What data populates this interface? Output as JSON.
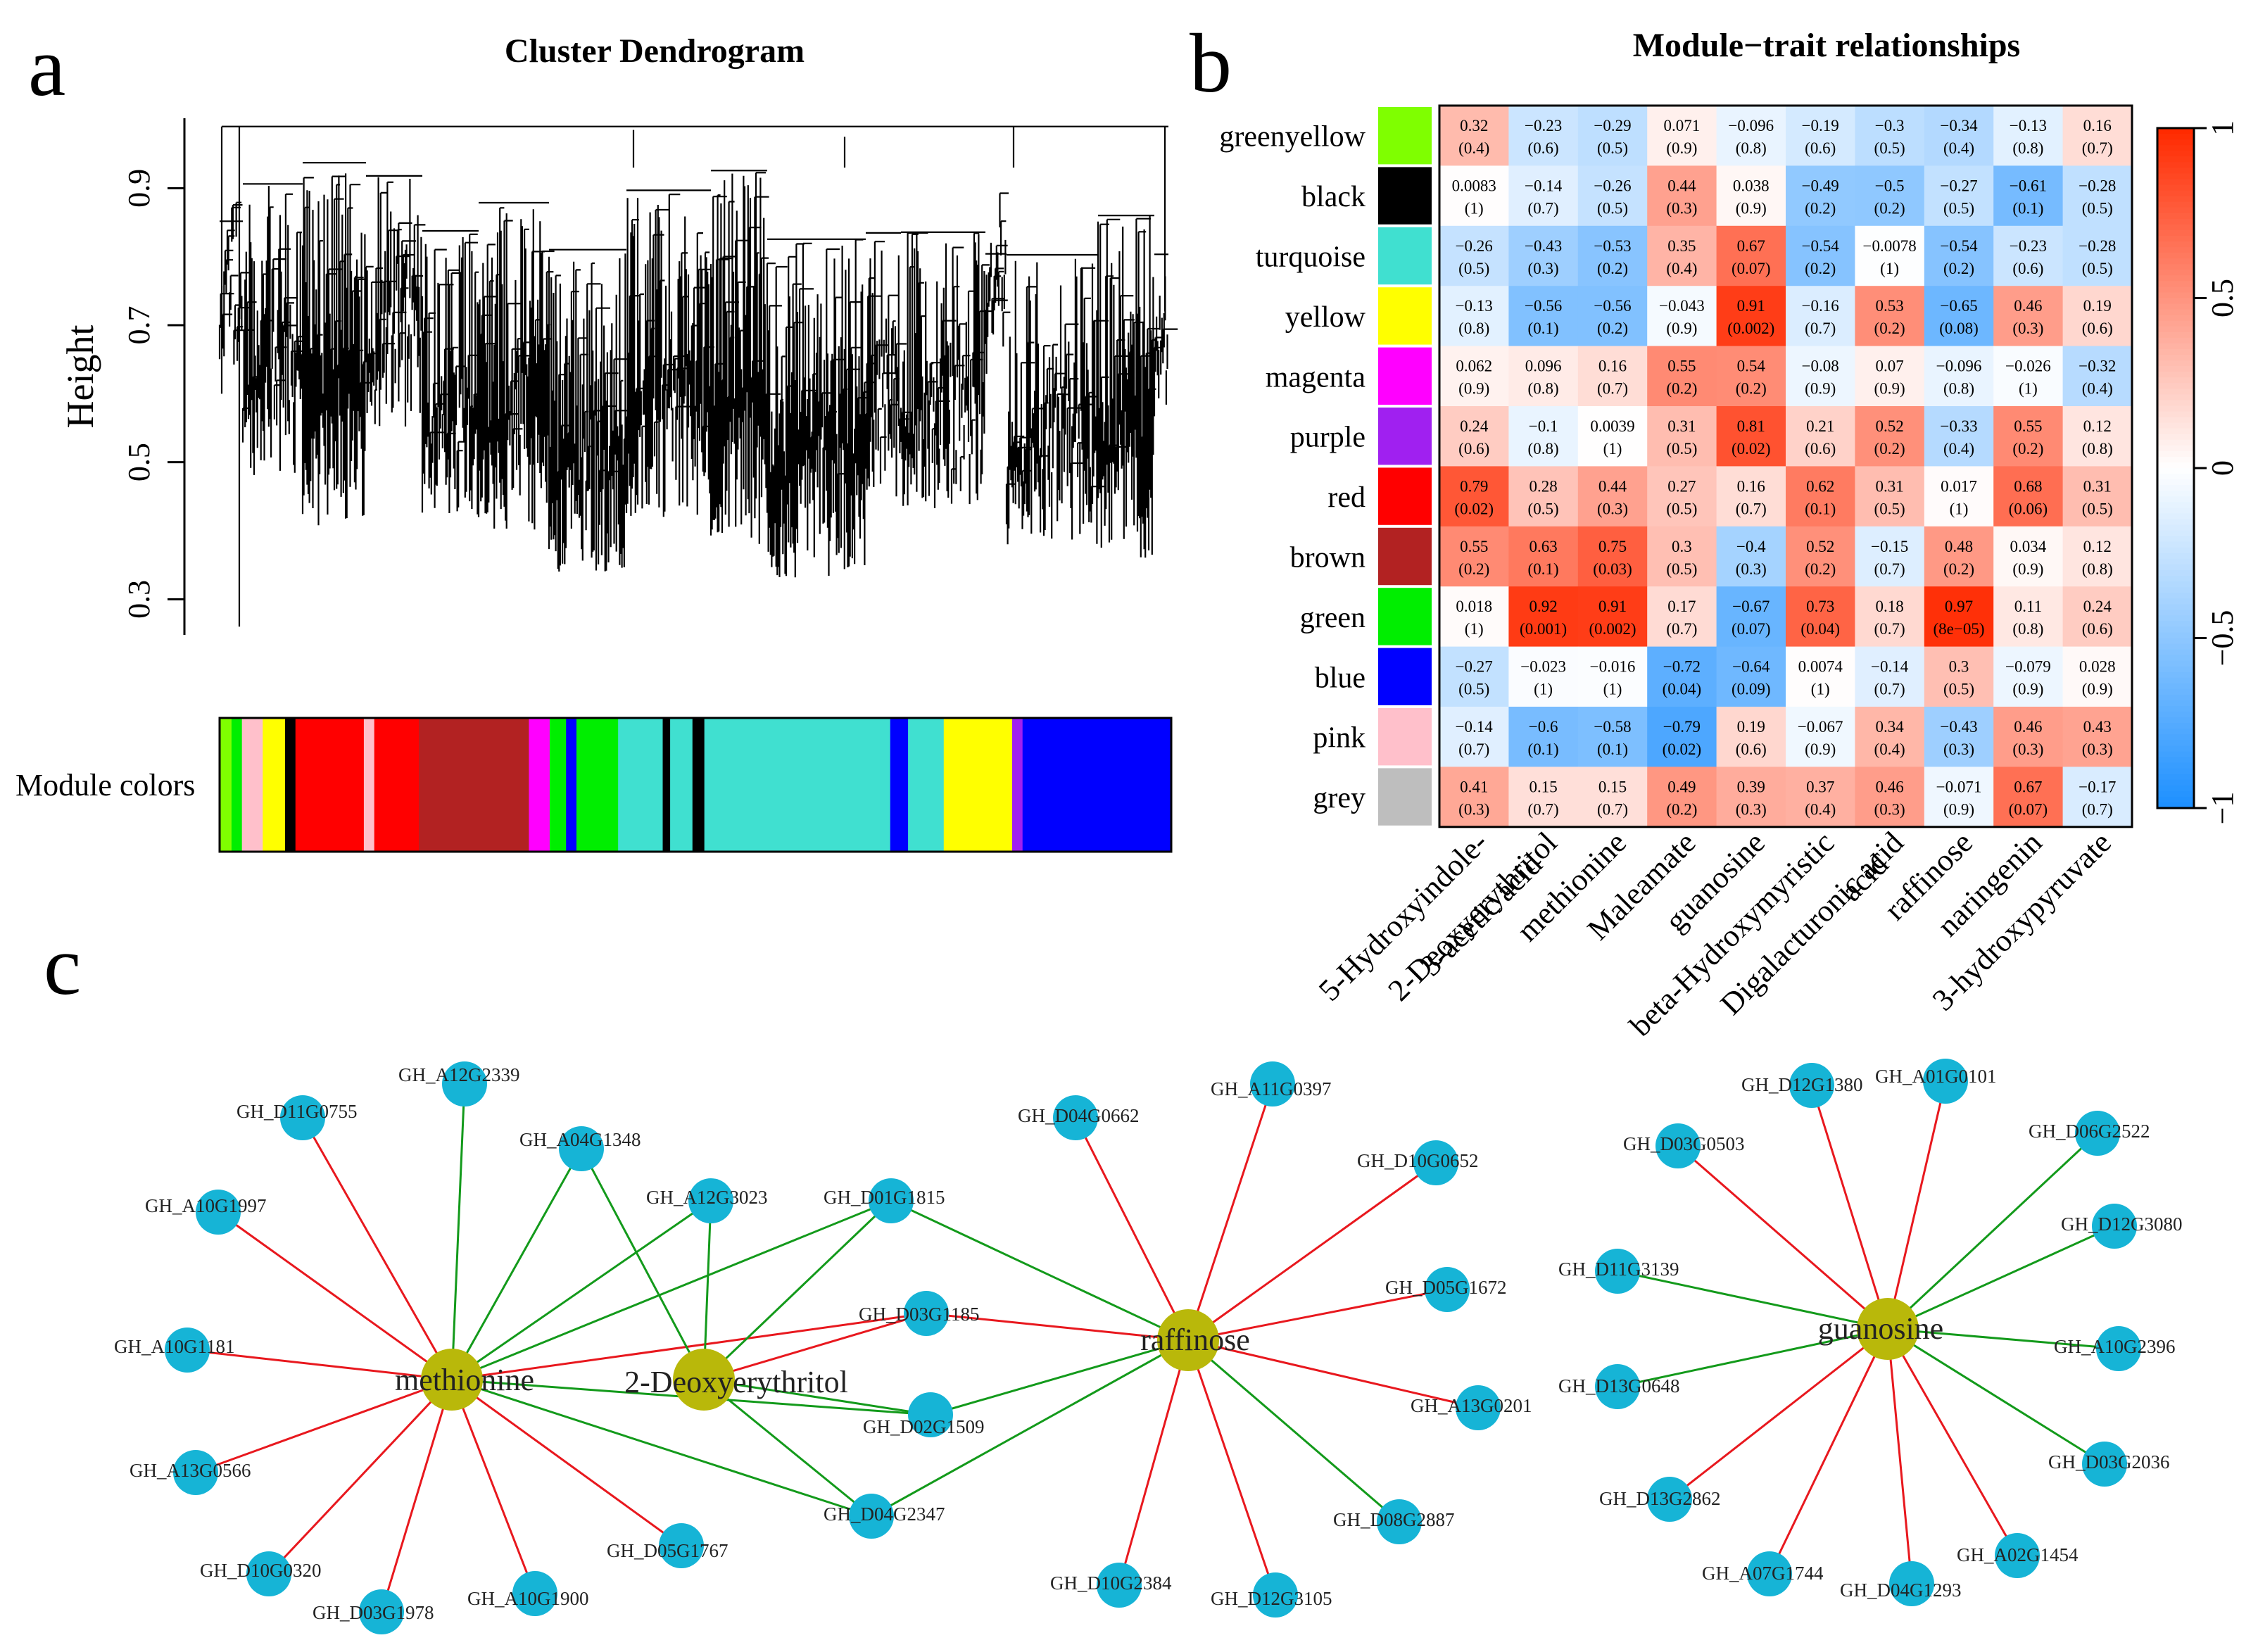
{
  "panel_labels": {
    "a": "a",
    "b": "b",
    "c": "c"
  },
  "chart_data": [
    {
      "type": "dendrogram",
      "title": "Cluster Dendrogram",
      "ylabel": "Height",
      "ylim": [
        0.25,
        1.0
      ],
      "yticks": [
        "0.3",
        "0.5",
        "0.7",
        "0.9"
      ],
      "colorbar_label": "Module colors",
      "module_color_sequence": [
        "greenyellow",
        "green",
        "pink",
        "yellow",
        "black",
        "red",
        "pink",
        "red",
        "brown",
        "magenta",
        "green",
        "blue",
        "green",
        "turquoise",
        "black",
        "turquoise",
        "black",
        "turquoise",
        "blue",
        "turquoise",
        "yellow",
        "purple",
        "blue"
      ]
    },
    {
      "type": "heatmap",
      "title": "Module−trait relationships",
      "modules": [
        "greenyellow",
        "black",
        "turquoise",
        "yellow",
        "magenta",
        "purple",
        "red",
        "brown",
        "green",
        "blue",
        "pink",
        "grey"
      ],
      "module_colors": [
        "#7fff00",
        "#000000",
        "#40e0d0",
        "#ffff00",
        "#ff00ff",
        "#a020f0",
        "#ff0000",
        "#b22222",
        "#00ee00",
        "#0000ff",
        "#ffc0cb",
        "#bebebe"
      ],
      "traits": [
        "5-Hydroxyindole-\n3-acetic acid",
        "2-Deoxyerythritol",
        "methionine",
        "Maleamate",
        "guanosine",
        "beta-Hydroxymyristic\nacid",
        "Digalacturonic acid",
        "raffinose",
        "naringenin",
        "3-hydroxypyruvate"
      ],
      "values": [
        [
          0.32,
          -0.23,
          -0.29,
          0.071,
          -0.096,
          -0.19,
          -0.3,
          -0.34,
          -0.13,
          0.16
        ],
        [
          0.0083,
          -0.14,
          -0.26,
          0.44,
          0.038,
          -0.49,
          -0.5,
          -0.27,
          -0.61,
          -0.28
        ],
        [
          -0.26,
          -0.43,
          -0.53,
          0.35,
          0.67,
          -0.54,
          -0.0078,
          -0.54,
          -0.23,
          -0.28
        ],
        [
          -0.13,
          -0.56,
          -0.56,
          -0.043,
          0.91,
          -0.16,
          0.53,
          -0.65,
          0.46,
          0.19
        ],
        [
          0.062,
          0.096,
          0.16,
          0.55,
          0.54,
          -0.08,
          0.07,
          -0.096,
          -0.026,
          -0.32
        ],
        [
          0.24,
          -0.1,
          0.0039,
          0.31,
          0.81,
          0.21,
          0.52,
          -0.33,
          0.55,
          0.12
        ],
        [
          0.79,
          0.28,
          0.44,
          0.27,
          0.16,
          0.62,
          0.31,
          0.017,
          0.68,
          0.31
        ],
        [
          0.55,
          0.63,
          0.75,
          0.3,
          -0.4,
          0.52,
          -0.15,
          0.48,
          0.034,
          0.12
        ],
        [
          0.018,
          0.92,
          0.91,
          0.17,
          -0.67,
          0.73,
          0.18,
          0.97,
          0.11,
          0.24
        ],
        [
          -0.27,
          -0.023,
          -0.016,
          -0.72,
          -0.64,
          0.0074,
          -0.14,
          0.3,
          -0.079,
          0.028
        ],
        [
          -0.14,
          -0.6,
          -0.58,
          -0.79,
          0.19,
          -0.067,
          0.34,
          -0.43,
          0.46,
          0.43
        ],
        [
          0.41,
          0.15,
          0.15,
          0.49,
          0.39,
          0.37,
          0.46,
          -0.071,
          0.67,
          -0.17
        ]
      ],
      "value_labels": [
        [
          "0.32",
          "−0.23",
          "−0.29",
          "0.071",
          "−0.096",
          "−0.19",
          "−0.3",
          "−0.34",
          "−0.13",
          "0.16"
        ],
        [
          "0.0083",
          "−0.14",
          "−0.26",
          "0.44",
          "0.038",
          "−0.49",
          "−0.5",
          "−0.27",
          "−0.61",
          "−0.28"
        ],
        [
          "−0.26",
          "−0.43",
          "−0.53",
          "0.35",
          "0.67",
          "−0.54",
          "−0.0078",
          "−0.54",
          "−0.23",
          "−0.28"
        ],
        [
          "−0.13",
          "−0.56",
          "−0.56",
          "−0.043",
          "0.91",
          "−0.16",
          "0.53",
          "−0.65",
          "0.46",
          "0.19"
        ],
        [
          "0.062",
          "0.096",
          "0.16",
          "0.55",
          "0.54",
          "−0.08",
          "0.07",
          "−0.096",
          "−0.026",
          "−0.32"
        ],
        [
          "0.24",
          "−0.1",
          "0.0039",
          "0.31",
          "0.81",
          "0.21",
          "0.52",
          "−0.33",
          "0.55",
          "0.12"
        ],
        [
          "0.79",
          "0.28",
          "0.44",
          "0.27",
          "0.16",
          "0.62",
          "0.31",
          "0.017",
          "0.68",
          "0.31"
        ],
        [
          "0.55",
          "0.63",
          "0.75",
          "0.3",
          "−0.4",
          "0.52",
          "−0.15",
          "0.48",
          "0.034",
          "0.12"
        ],
        [
          "0.018",
          "0.92",
          "0.91",
          "0.17",
          "−0.67",
          "0.73",
          "0.18",
          "0.97",
          "0.11",
          "0.24"
        ],
        [
          "−0.27",
          "−0.023",
          "−0.016",
          "−0.72",
          "−0.64",
          "0.0074",
          "−0.14",
          "0.3",
          "−0.079",
          "0.028"
        ],
        [
          "−0.14",
          "−0.6",
          "−0.58",
          "−0.79",
          "0.19",
          "−0.067",
          "0.34",
          "−0.43",
          "0.46",
          "0.43"
        ],
        [
          "0.41",
          "0.15",
          "0.15",
          "0.49",
          "0.39",
          "0.37",
          "0.46",
          "−0.071",
          "0.67",
          "−0.17"
        ]
      ],
      "pvalues": [
        [
          "(0.4)",
          "(0.6)",
          "(0.5)",
          "(0.9)",
          "(0.8)",
          "(0.6)",
          "(0.5)",
          "(0.4)",
          "(0.8)",
          "(0.7)"
        ],
        [
          "(1)",
          "(0.7)",
          "(0.5)",
          "(0.3)",
          "(0.9)",
          "(0.2)",
          "(0.2)",
          "(0.5)",
          "(0.1)",
          "(0.5)"
        ],
        [
          "(0.5)",
          "(0.3)",
          "(0.2)",
          "(0.4)",
          "(0.07)",
          "(0.2)",
          "(1)",
          "(0.2)",
          "(0.6)",
          "(0.5)"
        ],
        [
          "(0.8)",
          "(0.1)",
          "(0.2)",
          "(0.9)",
          "(0.002)",
          "(0.7)",
          "(0.2)",
          "(0.08)",
          "(0.3)",
          "(0.6)"
        ],
        [
          "(0.9)",
          "(0.8)",
          "(0.7)",
          "(0.2)",
          "(0.2)",
          "(0.9)",
          "(0.9)",
          "(0.8)",
          "(1)",
          "(0.4)"
        ],
        [
          "(0.6)",
          "(0.8)",
          "(1)",
          "(0.5)",
          "(0.02)",
          "(0.6)",
          "(0.2)",
          "(0.4)",
          "(0.2)",
          "(0.8)"
        ],
        [
          "(0.02)",
          "(0.5)",
          "(0.3)",
          "(0.5)",
          "(0.7)",
          "(0.1)",
          "(0.5)",
          "(1)",
          "(0.06)",
          "(0.5)"
        ],
        [
          "(0.2)",
          "(0.1)",
          "(0.03)",
          "(0.5)",
          "(0.3)",
          "(0.2)",
          "(0.7)",
          "(0.2)",
          "(0.9)",
          "(0.8)"
        ],
        [
          "(1)",
          "(0.001)",
          "(0.002)",
          "(0.7)",
          "(0.07)",
          "(0.04)",
          "(0.7)",
          "(8e−05)",
          "(0.8)",
          "(0.6)"
        ],
        [
          "(0.5)",
          "(1)",
          "(1)",
          "(0.04)",
          "(0.09)",
          "(1)",
          "(0.7)",
          "(0.5)",
          "(0.9)",
          "(0.9)"
        ],
        [
          "(0.7)",
          "(0.1)",
          "(0.1)",
          "(0.02)",
          "(0.6)",
          "(0.9)",
          "(0.4)",
          "(0.3)",
          "(0.3)",
          "(0.3)"
        ],
        [
          "(0.3)",
          "(0.7)",
          "(0.7)",
          "(0.2)",
          "(0.3)",
          "(0.4)",
          "(0.3)",
          "(0.9)",
          "(0.07)",
          "(0.7)"
        ]
      ],
      "colorbar": {
        "range": [
          -1,
          1
        ],
        "ticks": [
          "1",
          "0.5",
          "0",
          "−0.5",
          "−1"
        ],
        "low_color": "#1e90ff",
        "mid_color": "#ffffff",
        "high_color": "#ff2a00"
      }
    },
    {
      "type": "network",
      "hub_color": "#b9b80a",
      "gene_color": "#16b4d6",
      "positive_edge_color": "#e8181e",
      "negative_edge_color": "#139a1b",
      "hubs": [
        {
          "id": "methionine",
          "label": "methionine"
        },
        {
          "id": "deoxy",
          "label": "2-Deoxyerythritol"
        },
        {
          "id": "raffinose",
          "label": "raffinose"
        },
        {
          "id": "guanosine",
          "label": "guanosine"
        }
      ],
      "genes": [
        "GH_D11G0755",
        "GH_A12G2339",
        "GH_A04G1348",
        "GH_A12G3023",
        "GH_D01G1815",
        "GH_A10G1997",
        "GH_A10G1181",
        "GH_A13G0566",
        "GH_D10G0320",
        "GH_D03G1978",
        "GH_A10G1900",
        "GH_D05G1767",
        "GH_D03G1185",
        "GH_D02G1509",
        "GH_D04G2347",
        "GH_D04G0662",
        "GH_A11G0397",
        "GH_D10G0652",
        "GH_D05G1672",
        "GH_A13G0201",
        "GH_D08G2887",
        "GH_D12G3105",
        "GH_D10G2384",
        "GH_D12G1380",
        "GH_A01G0101",
        "GH_D03G0503",
        "GH_D06G2522",
        "GH_D12G3080",
        "GH_D11G3139",
        "GH_A10G2396",
        "GH_D13G0648",
        "GH_D03G2036",
        "GH_D13G2862",
        "GH_A02G1454",
        "GH_A07G1744",
        "GH_D04G1293"
      ],
      "edges": [
        [
          "methionine",
          "GH_D11G0755",
          "positive"
        ],
        [
          "methionine",
          "GH_A10G1997",
          "positive"
        ],
        [
          "methionine",
          "GH_A10G1181",
          "positive"
        ],
        [
          "methionine",
          "GH_A13G0566",
          "positive"
        ],
        [
          "methionine",
          "GH_D10G0320",
          "positive"
        ],
        [
          "methionine",
          "GH_D03G1978",
          "positive"
        ],
        [
          "methionine",
          "GH_A10G1900",
          "positive"
        ],
        [
          "methionine",
          "GH_D05G1767",
          "positive"
        ],
        [
          "methionine",
          "GH_D03G1185",
          "positive"
        ],
        [
          "methionine",
          "GH_A12G2339",
          "negative"
        ],
        [
          "methionine",
          "GH_A04G1348",
          "negative"
        ],
        [
          "methionine",
          "GH_A12G3023",
          "negative"
        ],
        [
          "methionine",
          "GH_D01G1815",
          "negative"
        ],
        [
          "methionine",
          "GH_D02G1509",
          "negative"
        ],
        [
          "methionine",
          "GH_D04G2347",
          "negative"
        ],
        [
          "deoxy",
          "GH_A04G1348",
          "negative"
        ],
        [
          "deoxy",
          "GH_A12G3023",
          "negative"
        ],
        [
          "deoxy",
          "GH_D01G1815",
          "negative"
        ],
        [
          "deoxy",
          "GH_D02G1509",
          "negative"
        ],
        [
          "deoxy",
          "GH_D04G2347",
          "negative"
        ],
        [
          "deoxy",
          "GH_D03G1185",
          "positive"
        ],
        [
          "raffinose",
          "GH_D03G1185",
          "positive"
        ],
        [
          "raffinose",
          "GH_D02G1509",
          "negative"
        ],
        [
          "raffinose",
          "GH_D04G2347",
          "negative"
        ],
        [
          "raffinose",
          "GH_D01G1815",
          "negative"
        ],
        [
          "raffinose",
          "GH_D04G0662",
          "positive"
        ],
        [
          "raffinose",
          "GH_A11G0397",
          "positive"
        ],
        [
          "raffinose",
          "GH_D10G0652",
          "positive"
        ],
        [
          "raffinose",
          "GH_D05G1672",
          "positive"
        ],
        [
          "raffinose",
          "GH_A13G0201",
          "positive"
        ],
        [
          "raffinose",
          "GH_D08G2887",
          "negative"
        ],
        [
          "raffinose",
          "GH_D12G3105",
          "positive"
        ],
        [
          "raffinose",
          "GH_D10G2384",
          "positive"
        ],
        [
          "guanosine",
          "GH_D12G1380",
          "positive"
        ],
        [
          "guanosine",
          "GH_A01G0101",
          "positive"
        ],
        [
          "guanosine",
          "GH_D03G0503",
          "positive"
        ],
        [
          "guanosine",
          "GH_D06G2522",
          "negative"
        ],
        [
          "guanosine",
          "GH_D12G3080",
          "negative"
        ],
        [
          "guanosine",
          "GH_D11G3139",
          "negative"
        ],
        [
          "guanosine",
          "GH_A10G2396",
          "negative"
        ],
        [
          "guanosine",
          "GH_D13G0648",
          "negative"
        ],
        [
          "guanosine",
          "GH_D03G2036",
          "negative"
        ],
        [
          "guanosine",
          "GH_D13G2862",
          "positive"
        ],
        [
          "guanosine",
          "GH_A02G1454",
          "positive"
        ],
        [
          "guanosine",
          "GH_A07G1744",
          "positive"
        ],
        [
          "guanosine",
          "GH_D04G1293",
          "positive"
        ]
      ]
    }
  ]
}
